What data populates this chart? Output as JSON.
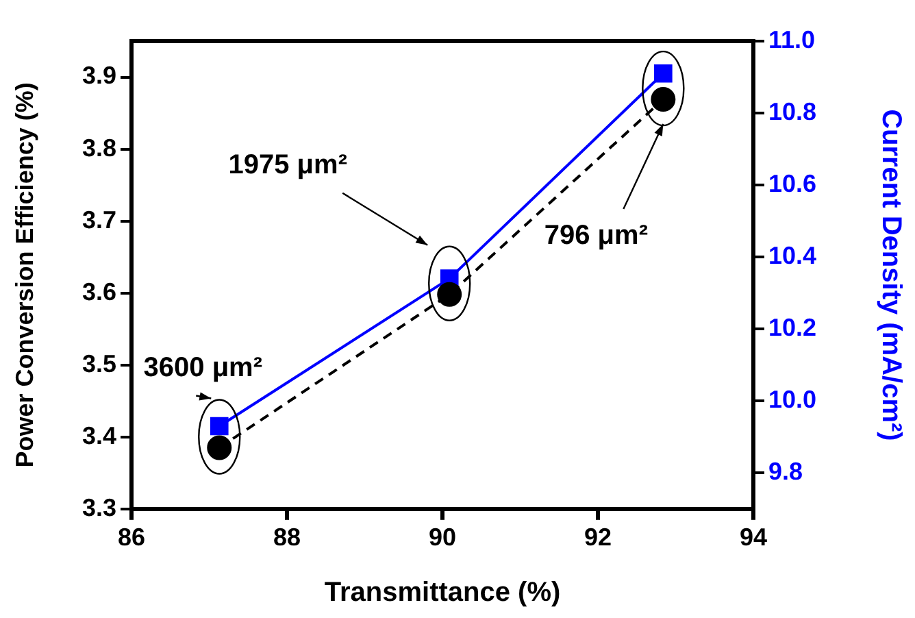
{
  "chart_data": {
    "type": "line",
    "xlabel": "Transmittance (%)",
    "ylabel": "Power Conversion Efficiency (%)",
    "y2label": "Current Density (mA/cm²)",
    "x": [
      87.13,
      90.09,
      92.84
    ],
    "series": [
      {
        "color": "#000000",
        "values": [
          3.385,
          3.598,
          3.869
        ],
        "marker": "circle",
        "line_style": "dashed"
      },
      {
        "color": "#0000ff",
        "values": [
          9.93,
          10.34,
          10.91
        ],
        "marker": "square",
        "line_style": "solid",
        "axis": "y2"
      }
    ],
    "xlim": [
      86,
      94
    ],
    "xticks": [
      86,
      88,
      90,
      92,
      94
    ],
    "ylim": [
      3.3,
      3.95
    ],
    "yticks": [
      3.3,
      3.4,
      3.5,
      3.6,
      3.7,
      3.8,
      3.9
    ],
    "y2lim": [
      9.7,
      11.0
    ],
    "y2ticks": [
      9.8,
      {
        "value": 10,
        "label": "10.0"
      },
      10.2,
      10.4,
      10.6,
      10.8,
      {
        "value": 11,
        "label": "11.0"
      }
    ],
    "grid": false,
    "legend": false,
    "annotations": [
      "3600 μm²",
      "1975 μm²",
      "796 μm²"
    ]
  }
}
